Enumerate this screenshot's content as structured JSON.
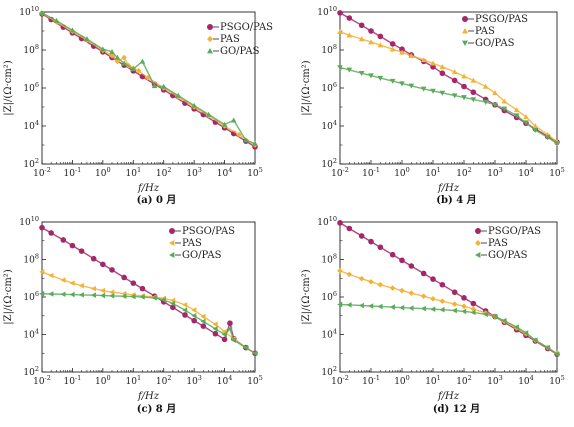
{
  "chart_data": [
    {
      "type": "scatter",
      "caption": "(a) 0 月",
      "xlabel": "f/Hz",
      "ylabel": "|Z|/(Ω·cm²)",
      "x_scale": "log",
      "y_scale": "log",
      "xlim": [
        0.01,
        100000
      ],
      "ylim": [
        100,
        10000000000
      ],
      "legend_position": "top-right",
      "series": [
        {
          "name": "PSGO/PAS",
          "marker": "circle",
          "color": "#a3276a",
          "x": [
            0.01,
            0.02,
            0.05,
            0.1,
            0.2,
            0.5,
            1,
            2,
            5,
            10,
            20,
            50,
            100,
            200,
            500,
            1000,
            2000,
            5000,
            10000,
            20000,
            50000,
            100000
          ],
          "y": [
            8000000000,
            4000000000,
            1600000000,
            800000000,
            400000000,
            160000000,
            80000000,
            40000000,
            16000000,
            8000000,
            4000000,
            1600000,
            800000,
            400000,
            160000,
            80000,
            40000,
            16000,
            8000,
            4000,
            1600,
            800
          ]
        },
        {
          "name": "PAS",
          "marker": "diamond",
          "color": "#f2b233",
          "x": [
            0.01,
            0.03,
            0.1,
            0.3,
            1,
            2,
            3,
            5,
            7,
            10,
            15,
            30,
            100,
            300,
            1000,
            3000,
            10000,
            30000,
            100000
          ],
          "y": [
            8500000000,
            3000000000,
            950000000,
            330000000,
            95000000,
            50000000,
            25000000,
            40000000,
            15000000,
            11000000,
            8000000,
            3500000,
            1000000,
            350000,
            100000,
            35000,
            10000,
            3500,
            1000
          ]
        },
        {
          "name": "GO/PAS",
          "marker": "triangle",
          "color": "#5aaa5a",
          "x": [
            0.01,
            0.03,
            0.1,
            0.3,
            1,
            2,
            3,
            5,
            10,
            20,
            50,
            100,
            300,
            1000,
            3000,
            10000,
            20000,
            50000,
            100000
          ],
          "y": [
            9000000000,
            3500000000,
            1100000000,
            380000000,
            110000000,
            80000000,
            40000000,
            20000000,
            10000000,
            25000000,
            1300000,
            1200000,
            400000,
            120000,
            40000,
            12000,
            20000,
            1800,
            1200
          ]
        }
      ]
    },
    {
      "type": "scatter",
      "caption": "(b) 4 月",
      "xlabel": "f/Hz",
      "ylabel": "|Z|/(Ω·cm²)",
      "x_scale": "log",
      "y_scale": "log",
      "xlim": [
        0.01,
        100000
      ],
      "ylim": [
        100,
        10000000000
      ],
      "legend_position": "top-right",
      "series": [
        {
          "name": "PSGO/PAS",
          "marker": "circle",
          "color": "#a3276a",
          "x": [
            0.01,
            0.02,
            0.05,
            0.1,
            0.2,
            0.5,
            1,
            2,
            5,
            10,
            20,
            50,
            100,
            200,
            500,
            1000,
            2000,
            5000,
            10000,
            20000,
            50000,
            100000
          ],
          "y": [
            9000000000,
            4800000000,
            2000000000,
            1000000000,
            520000000,
            210000000,
            110000000,
            55000000,
            25000000,
            13000000,
            6000000,
            2500000,
            1200000,
            600000,
            250000,
            130000,
            65000,
            28000,
            14000,
            7000,
            2800,
            1400
          ]
        },
        {
          "name": "PAS",
          "marker": "triangle",
          "color": "#f2b233",
          "x": [
            0.01,
            0.02,
            0.05,
            0.1,
            0.2,
            0.5,
            1,
            2,
            5,
            10,
            20,
            50,
            100,
            200,
            500,
            1000,
            2000,
            5000,
            10000,
            20000,
            50000,
            100000
          ],
          "y": [
            900000000,
            600000000,
            380000000,
            260000000,
            180000000,
            110000000,
            75000000,
            50000000,
            30000000,
            20000000,
            13000000,
            7000000,
            4200000,
            2500000,
            1200000,
            550000,
            200000,
            70000,
            30000,
            10000,
            3500,
            1500
          ]
        },
        {
          "name": "GO/PAS",
          "marker": "triangle-down",
          "color": "#5aaa5a",
          "x": [
            0.01,
            0.02,
            0.05,
            0.1,
            0.2,
            0.5,
            1,
            2,
            5,
            10,
            20,
            50,
            100,
            200,
            500,
            1000,
            2000,
            5000,
            10000,
            20000,
            50000,
            100000
          ],
          "y": [
            12000000,
            9000000,
            6000000,
            4500000,
            3300000,
            2300000,
            1700000,
            1300000,
            900000,
            700000,
            550000,
            400000,
            320000,
            250000,
            180000,
            130000,
            80000,
            35000,
            15000,
            6000,
            2500,
            1200
          ]
        }
      ]
    },
    {
      "type": "scatter",
      "caption": "(c) 8 月",
      "xlabel": "f/Hz",
      "ylabel": "|Z|/(Ω·cm²)",
      "x_scale": "log",
      "y_scale": "log",
      "xlim": [
        0.01,
        100000
      ],
      "ylim": [
        100,
        10000000000
      ],
      "legend_position": "top-right",
      "series": [
        {
          "name": "PSGO/PAS",
          "marker": "circle",
          "color": "#a3276a",
          "x": [
            0.01,
            0.02,
            0.05,
            0.1,
            0.2,
            0.5,
            1,
            2,
            5,
            10,
            20,
            50,
            100,
            200,
            500,
            1000,
            2000,
            5000,
            10000,
            15000,
            20000,
            50000,
            100000
          ],
          "y": [
            5000000000,
            2600000000,
            1100000000,
            550000000,
            280000000,
            110000000,
            55000000,
            28000000,
            11000000,
            5500000,
            2800000,
            1100000,
            550000,
            280000,
            110000,
            55000,
            28000,
            11000,
            5500,
            40000,
            6000,
            2000,
            1000
          ]
        },
        {
          "name": "PAS",
          "marker": "triangle-left",
          "color": "#f2b233",
          "x": [
            0.01,
            0.02,
            0.05,
            0.1,
            0.2,
            0.5,
            1,
            2,
            5,
            10,
            20,
            50,
            100,
            200,
            500,
            1000,
            2000,
            5000,
            10000,
            20000,
            50000,
            100000
          ],
          "y": [
            22000000,
            14000000,
            8000000,
            5500000,
            4000000,
            2800000,
            2200000,
            1800000,
            1500000,
            1300000,
            1150000,
            1000000,
            850000,
            650000,
            380000,
            200000,
            90000,
            35000,
            14000,
            6000,
            2000,
            1000
          ]
        },
        {
          "name": "GO/PAS",
          "marker": "triangle-left",
          "color": "#5aaa5a",
          "x": [
            0.01,
            0.02,
            0.05,
            0.1,
            0.2,
            0.5,
            1,
            2,
            5,
            10,
            20,
            50,
            100,
            200,
            500,
            1000,
            2000,
            5000,
            10000,
            15000,
            20000,
            50000,
            100000
          ],
          "y": [
            1500000,
            1450000,
            1400000,
            1350000,
            1300000,
            1250000,
            1200000,
            1150000,
            1100000,
            1050000,
            1000000,
            900000,
            700000,
            450000,
            200000,
            100000,
            50000,
            20000,
            10000,
            20000,
            5000,
            2000,
            1000
          ]
        }
      ]
    },
    {
      "type": "scatter",
      "caption": "(d) 12 月",
      "xlabel": "f/Hz",
      "ylabel": "|Z|/(Ω·cm²)",
      "x_scale": "log",
      "y_scale": "log",
      "xlim": [
        0.01,
        100000
      ],
      "ylim": [
        100,
        10000000000
      ],
      "legend_position": "top-right",
      "series": [
        {
          "name": "PSGO/PAS",
          "marker": "circle",
          "color": "#a3276a",
          "x": [
            0.01,
            0.02,
            0.05,
            0.1,
            0.2,
            0.5,
            1,
            2,
            5,
            10,
            20,
            50,
            100,
            200,
            500,
            1000,
            2000,
            5000,
            10000,
            20000,
            50000,
            100000
          ],
          "y": [
            9000000000,
            4500000000,
            1800000000,
            900000000,
            450000000,
            180000000,
            90000000,
            45000000,
            18000000,
            9000000,
            4500000,
            1800000,
            900000,
            450000,
            180000,
            90000,
            45000,
            18000,
            9000,
            4500,
            1800,
            900
          ]
        },
        {
          "name": "PAS",
          "marker": "diamond",
          "color": "#f2b233",
          "x": [
            0.01,
            0.02,
            0.05,
            0.1,
            0.2,
            0.5,
            1,
            2,
            5,
            10,
            20,
            50,
            100,
            200,
            500,
            1000,
            2000,
            5000,
            10000,
            20000,
            50000,
            100000
          ],
          "y": [
            25000000,
            16000000,
            9500000,
            6500000,
            4500000,
            3000000,
            2200000,
            1600000,
            1100000,
            800000,
            600000,
            420000,
            320000,
            230000,
            140000,
            90000,
            50000,
            22000,
            11000,
            5000,
            2000,
            1000
          ]
        },
        {
          "name": "GO/PAS",
          "marker": "triangle-left",
          "color": "#5aaa5a",
          "x": [
            0.01,
            0.02,
            0.05,
            0.1,
            0.2,
            0.5,
            1,
            2,
            5,
            10,
            20,
            50,
            100,
            200,
            500,
            1000,
            2000,
            5000,
            10000,
            20000,
            50000,
            100000
          ],
          "y": [
            400000,
            380000,
            350000,
            330000,
            310000,
            290000,
            270000,
            255000,
            240000,
            225000,
            210000,
            190000,
            170000,
            150000,
            120000,
            90000,
            55000,
            25000,
            12000,
            5000,
            2000,
            900
          ]
        }
      ]
    }
  ]
}
